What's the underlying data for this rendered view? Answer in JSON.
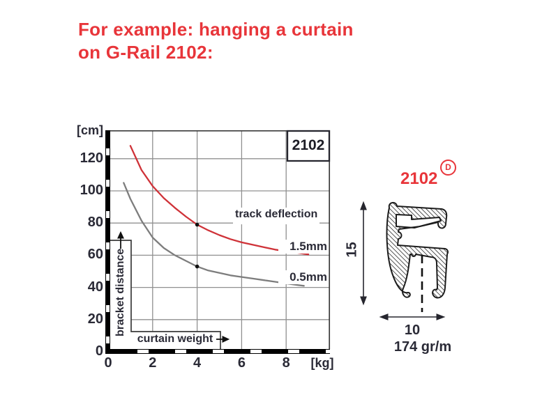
{
  "title": {
    "line1": "For example: hanging a curtain",
    "line2": "on G-Rail 2102:"
  },
  "colors": {
    "accent_red": "#e8353a",
    "curve_red": "#cf3238",
    "curve_gray": "#7d7d7d",
    "text_dark": "#2a2a36",
    "grid": "#909090"
  },
  "chart_data": {
    "type": "line",
    "title_box": "2102",
    "x_unit": "[kg]",
    "y_unit": "[cm]",
    "xlabel": "curtain weight",
    "ylabel": "bracket distance",
    "annotation": "track deflection",
    "x_ticks": [
      0,
      2,
      4,
      6,
      8
    ],
    "y_ticks": [
      0,
      20,
      40,
      60,
      80,
      100,
      120
    ],
    "x_range": [
      0,
      10
    ],
    "y_range": [
      0,
      135
    ],
    "grid": true,
    "series": [
      {
        "name": "1.5mm",
        "color": "#cf3238",
        "points": [
          [
            1,
            128
          ],
          [
            1.5,
            113
          ],
          [
            2,
            103
          ],
          [
            2.5,
            95.5
          ],
          [
            3,
            89.5
          ],
          [
            3.5,
            84
          ],
          [
            4,
            79
          ],
          [
            4.5,
            75.5
          ],
          [
            5,
            72.5
          ],
          [
            5.5,
            70
          ],
          [
            6,
            68
          ],
          [
            6.5,
            66.5
          ],
          [
            7,
            65
          ],
          [
            7.5,
            63.5
          ],
          [
            8,
            62.5
          ],
          [
            8.5,
            61.5
          ],
          [
            9,
            60.5
          ]
        ],
        "marked_point": [
          4,
          79
        ]
      },
      {
        "name": "0.5mm",
        "color": "#7d7d7d",
        "points": [
          [
            0.7,
            105
          ],
          [
            1,
            95
          ],
          [
            1.5,
            81.5
          ],
          [
            2,
            71
          ],
          [
            2.5,
            64.5
          ],
          [
            3,
            60
          ],
          [
            3.5,
            56.5
          ],
          [
            4,
            53
          ],
          [
            4.5,
            50.5
          ],
          [
            5,
            49
          ],
          [
            5.5,
            47.5
          ],
          [
            6,
            46.5
          ],
          [
            6.5,
            45.5
          ],
          [
            7,
            44.5
          ],
          [
            7.5,
            43.5
          ],
          [
            8,
            42.5
          ],
          [
            8.5,
            41.5
          ],
          [
            8.8,
            41
          ]
        ],
        "marked_point": [
          4,
          53
        ]
      }
    ]
  },
  "profile": {
    "label": "2102",
    "label_superscript": "D",
    "height_dim": "15",
    "width_dim": "10",
    "weight": "174 gr/m"
  }
}
